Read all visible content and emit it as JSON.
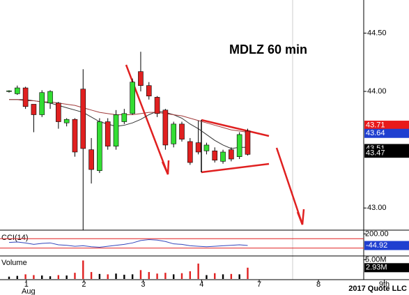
{
  "chart_data": [
    {
      "type": "candlestick",
      "title": "MDLZ 60 min",
      "xlim": [
        -1.1,
        43.1
      ],
      "xticks": [
        {
          "value": 2.1,
          "label": "1",
          "sublabel": "Aug"
        },
        {
          "value": 9.1,
          "label": "2"
        },
        {
          "value": 16.3,
          "label": "3"
        },
        {
          "value": 23.4,
          "label": "4"
        },
        {
          "value": 30.4,
          "label": "7"
        },
        {
          "value": 37.6,
          "label": "8"
        },
        {
          "value": 45.6,
          "label": "9th"
        }
      ],
      "ylim": [
        42.81,
        44.784
      ],
      "yticks": [
        {
          "value": 44.5,
          "label": "44.50"
        },
        {
          "value": 44,
          "label": "44.00"
        },
        {
          "value": 43,
          "label": "43.00"
        }
      ],
      "open": [
        44.0,
        43.98,
        44.03,
        43.89,
        43.8,
        43.9,
        43.9,
        43.73,
        43.76,
        44.02,
        43.5,
        43.32,
        43.74,
        43.53,
        43.74,
        43.81,
        44.17,
        44.05,
        43.95,
        43.84,
        43.55,
        43.72,
        43.57,
        43.56,
        43.49,
        43.49,
        43.4,
        43.5,
        43.44,
        43.66
      ],
      "high": [
        44.01,
        44.05,
        44.04,
        43.89,
        44.01,
        44.01,
        43.91,
        43.77,
        43.77,
        44.19,
        43.6,
        43.77,
        43.77,
        43.84,
        43.85,
        44.11,
        44.34,
        44.08,
        43.96,
        43.85,
        43.74,
        43.74,
        43.6,
        43.75,
        43.56,
        43.52,
        43.5,
        43.52,
        43.65,
        43.68
      ],
      "low": [
        43.99,
        43.97,
        43.85,
        43.65,
        43.78,
        43.85,
        43.68,
        43.7,
        43.44,
        42.81,
        43.21,
        43.3,
        43.5,
        43.5,
        43.72,
        43.8,
        44.0,
        43.93,
        43.78,
        43.5,
        43.52,
        43.57,
        43.37,
        43.46,
        43.46,
        43.39,
        43.38,
        43.4,
        43.42,
        43.45
      ],
      "close": [
        44.005,
        44.03,
        43.87,
        43.8,
        43.99,
        44.0,
        43.74,
        43.76,
        43.48,
        43.51,
        43.33,
        43.74,
        43.53,
        43.8,
        43.81,
        44.08,
        44.05,
        43.96,
        43.81,
        43.54,
        43.72,
        43.59,
        43.39,
        43.48,
        43.54,
        43.41,
        43.48,
        43.42,
        43.63,
        43.46
      ],
      "up_color": "#33dd33",
      "down_color": "#e02020",
      "moving_averages": [
        {
          "color": "#333333",
          "values": [
            43.93,
            43.93,
            43.93,
            43.92,
            43.91,
            43.9,
            43.88,
            43.86,
            43.84,
            43.82,
            43.78,
            43.74,
            43.72,
            43.7,
            43.71,
            43.73,
            43.76,
            43.8,
            43.83,
            43.82,
            43.8,
            43.77,
            43.72,
            43.68,
            43.63,
            43.58,
            43.54,
            43.51,
            43.52,
            43.52
          ]
        },
        {
          "color": "#a03a3a",
          "values": [
            43.93,
            43.93,
            43.92,
            43.92,
            43.91,
            43.91,
            43.9,
            43.89,
            43.88,
            43.86,
            43.84,
            43.82,
            43.81,
            43.8,
            43.8,
            43.8,
            43.81,
            43.82,
            43.82,
            43.81,
            43.8,
            43.79,
            43.77,
            43.75,
            43.73,
            43.71,
            43.69,
            43.67,
            43.66,
            43.65
          ]
        }
      ],
      "price_badges": [
        {
          "value": 43.71,
          "color": "#e8191a"
        },
        {
          "value": 43.64,
          "color": "#1f3fd0"
        },
        {
          "value": 43.51,
          "color": "#000000"
        },
        {
          "value": 43.47,
          "color": "#000000"
        }
      ],
      "footer": "2017 Quote LLC"
    },
    {
      "type": "line",
      "title": "CCI(14)",
      "ylim": [
        -250,
        250
      ],
      "yticks": [
        {
          "value": 200,
          "label": "200.00"
        }
      ],
      "levels": [
        100,
        -100
      ],
      "level_color": "#e02020",
      "color": "#3344bb",
      "values": [
        20,
        30,
        10,
        -20,
        0,
        10,
        -30,
        -40,
        -60,
        -50,
        -70,
        -80,
        -60,
        -40,
        -20,
        10,
        60,
        80,
        70,
        40,
        -10,
        -20,
        -50,
        -60,
        -70,
        -60,
        -50,
        -40,
        -30,
        -44.92
      ],
      "value_badge": {
        "value": -44.92,
        "color": "#1f3fd0"
      }
    },
    {
      "type": "volume",
      "title": "Volume",
      "ylim": [
        0,
        5800000
      ],
      "yticks": [
        {
          "value": 5000000,
          "label": "5.00M"
        }
      ],
      "values": [
        600000,
        800000,
        1200000,
        1000000,
        900000,
        700000,
        1000000,
        900000,
        1600000,
        4800000,
        1800000,
        1300000,
        1200000,
        1400000,
        1100000,
        1200000,
        2300000,
        1800000,
        1400000,
        1600000,
        1200000,
        1500000,
        2000000,
        4000000,
        1000000,
        1500000,
        1200000,
        1300000,
        1200000,
        2930000
      ],
      "value_badge": {
        "value": 2930000,
        "label": "2.93M",
        "color": "#000000"
      }
    }
  ]
}
